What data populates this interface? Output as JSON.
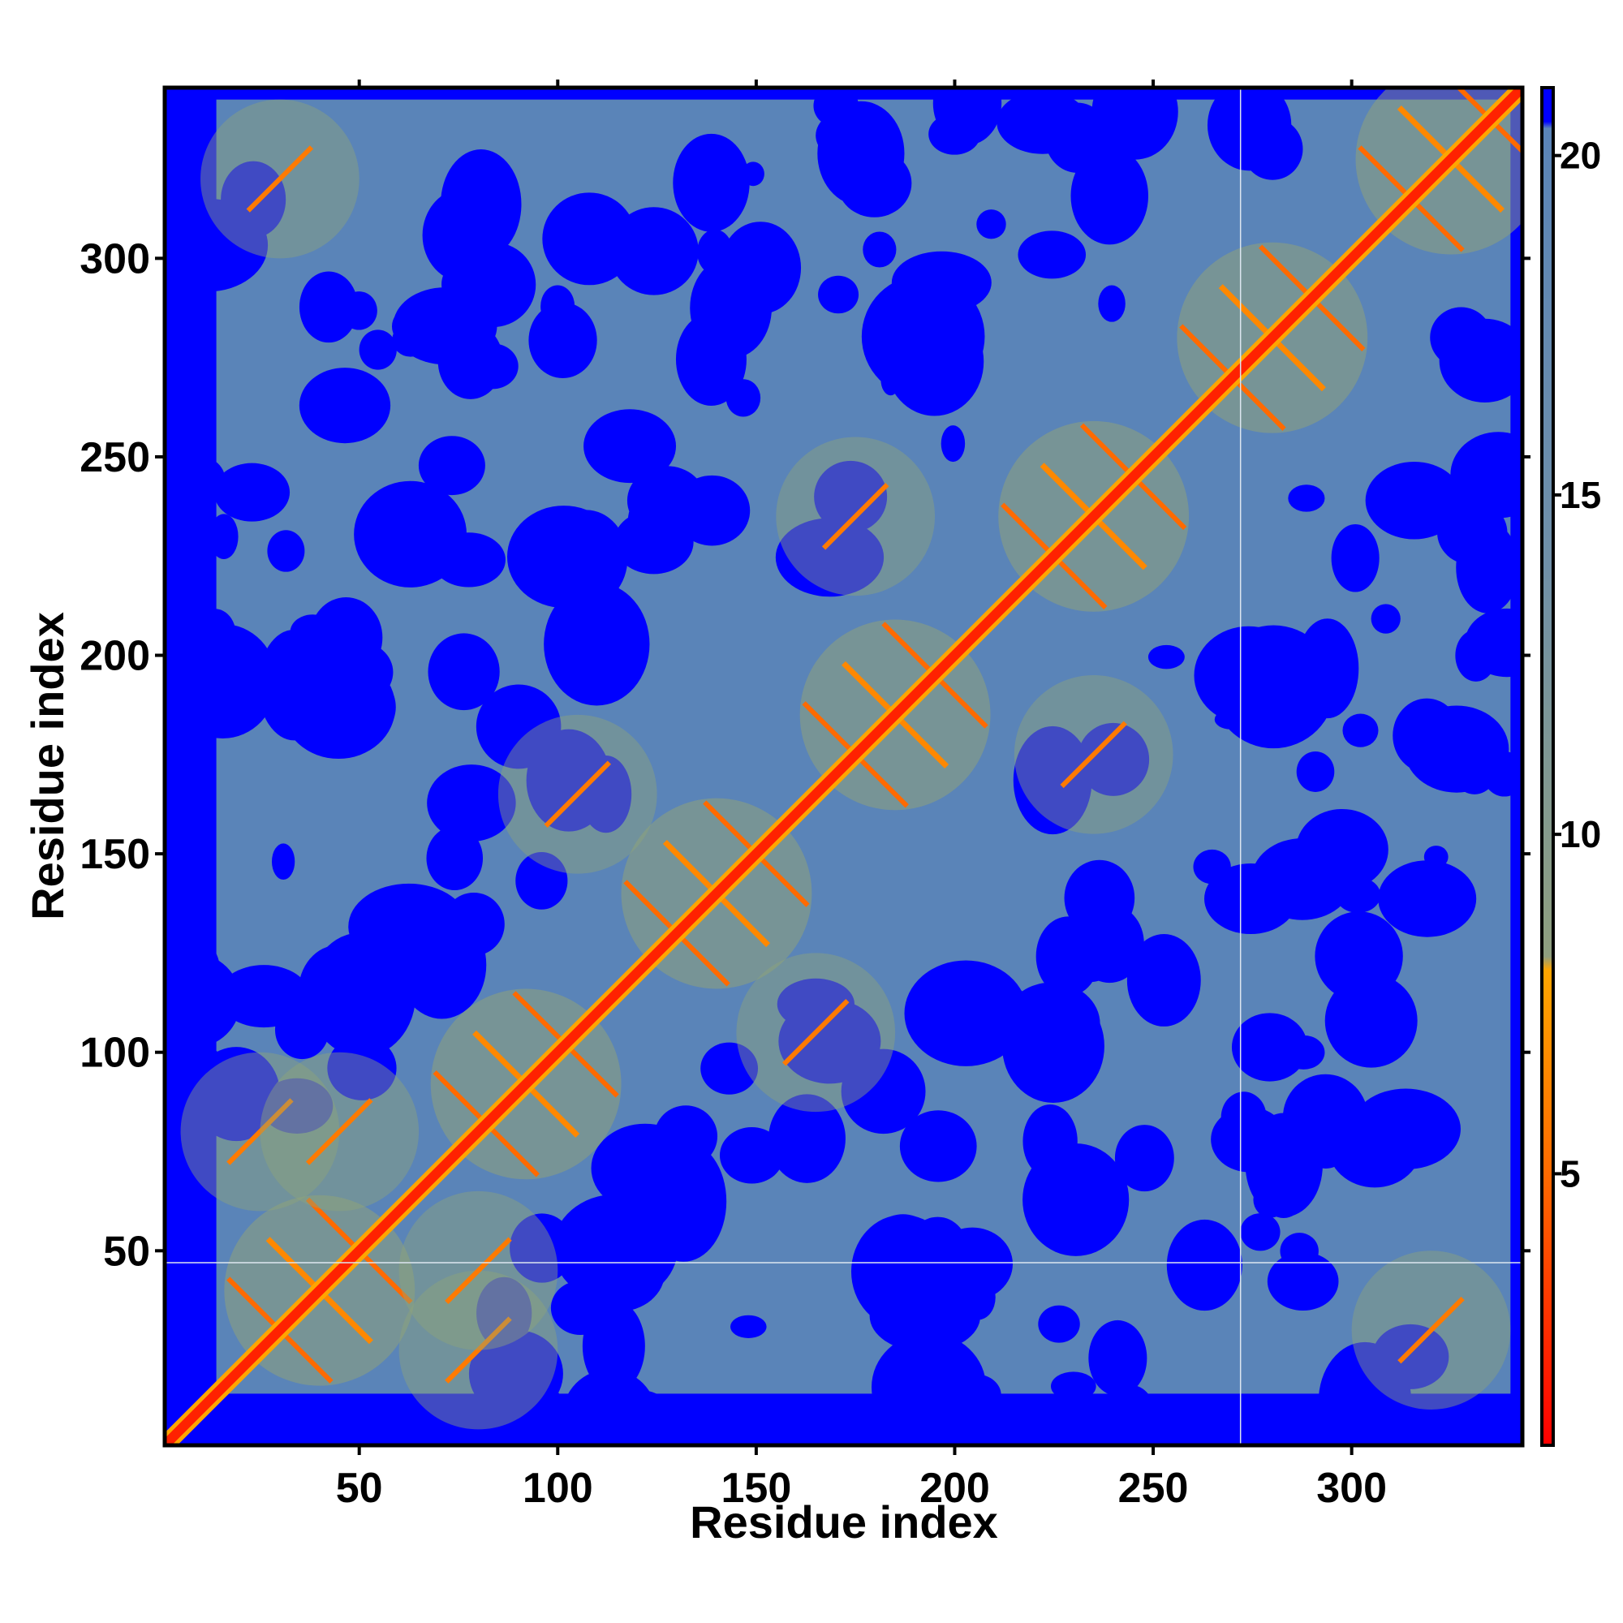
{
  "chart_data": {
    "type": "heatmap",
    "title": "",
    "xlabel": "Residue index",
    "ylabel": "Residue index",
    "xlim": [
      1,
      343
    ],
    "ylim": [
      1,
      343
    ],
    "x_ticks": [
      50,
      100,
      150,
      200,
      250,
      300
    ],
    "y_ticks": [
      50,
      100,
      150,
      200,
      250,
      300
    ],
    "grid": false,
    "colorbar": {
      "ticks": [
        5,
        10,
        15,
        20
      ],
      "range": [
        1,
        21
      ],
      "placement": "right",
      "colors": [
        {
          "value": 1,
          "color": "#ff0000"
        },
        {
          "value": 5,
          "color": "#ff6a00"
        },
        {
          "value": 8,
          "color": "#ffa500"
        },
        {
          "value": 9,
          "color": "#8f9f7f"
        },
        {
          "value": 14,
          "color": "#6e8ca8"
        },
        {
          "value": 20,
          "color": "#5a84b8"
        },
        {
          "value": 21,
          "color": "#0000ff"
        }
      ]
    },
    "description_values": {
      "diagonal_distance": 1,
      "max_distance": 21
    },
    "helix_centers": [
      40,
      92,
      140,
      185,
      235,
      280,
      325
    ],
    "background_color": "#5a84b8",
    "far_color": "#0000ff",
    "near_color": "#ff2200",
    "mid_color": "#8fa37a",
    "reference_lines": {
      "x": 272,
      "y": 47
    }
  }
}
